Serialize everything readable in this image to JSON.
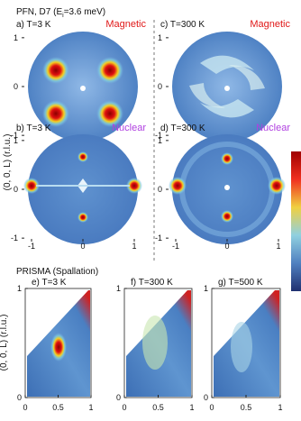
{
  "figure": {
    "header": {
      "prefix": "PFN, D7 (E",
      "subscript": "i",
      "suffix": "=3.6 meV)"
    },
    "y_label": "(0, 0, L) (r.l.u.)",
    "panels": [
      {
        "label": "a) T=3 K",
        "tag": "Magnetic"
      },
      {
        "label": "c) T=300 K",
        "tag": "Magnetic"
      },
      {
        "label": "b) T=3 K",
        "tag": "Nuclear"
      },
      {
        "label": "d) T=300 K",
        "tag": "Nuclear"
      }
    ],
    "disk_xticks": [
      -1,
      0,
      1
    ],
    "disk_yticks": [
      1,
      0,
      -1
    ],
    "spallation": {
      "title": "PRISMA (Spallation)",
      "panels": [
        "e) T=3 K",
        "f) T=300 K",
        "g) T=500 K"
      ],
      "xticks": [
        0,
        0.5,
        1
      ],
      "yticks": [
        1,
        0
      ],
      "y_label": "(0, 0, L) (r.l.u.)"
    }
  }
}
